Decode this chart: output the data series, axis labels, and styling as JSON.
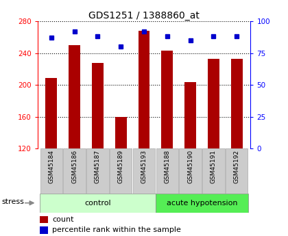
{
  "title": "GDS1251 / 1388860_at",
  "samples": [
    "GSM45184",
    "GSM45186",
    "GSM45187",
    "GSM45189",
    "GSM45193",
    "GSM45188",
    "GSM45190",
    "GSM45191",
    "GSM45192"
  ],
  "counts": [
    209,
    250,
    228,
    160,
    268,
    243,
    204,
    233,
    233
  ],
  "percentiles": [
    87,
    92,
    88,
    80,
    92,
    88,
    85,
    88,
    88
  ],
  "n_control": 5,
  "n_acute": 4,
  "ylim_left": [
    120,
    280
  ],
  "ylim_right": [
    0,
    100
  ],
  "yticks_left": [
    120,
    160,
    200,
    240,
    280
  ],
  "yticks_right": [
    0,
    25,
    50,
    75,
    100
  ],
  "bar_color": "#aa0000",
  "dot_color": "#0000cc",
  "bar_width": 0.5,
  "control_color": "#ccffcc",
  "acute_color": "#55ee55",
  "sample_box_color": "#cccccc",
  "stress_label": "stress",
  "legend_count_label": "count",
  "legend_pct_label": "percentile rank within the sample",
  "title_fontsize": 10,
  "tick_fontsize": 7.5,
  "label_fontsize": 8
}
